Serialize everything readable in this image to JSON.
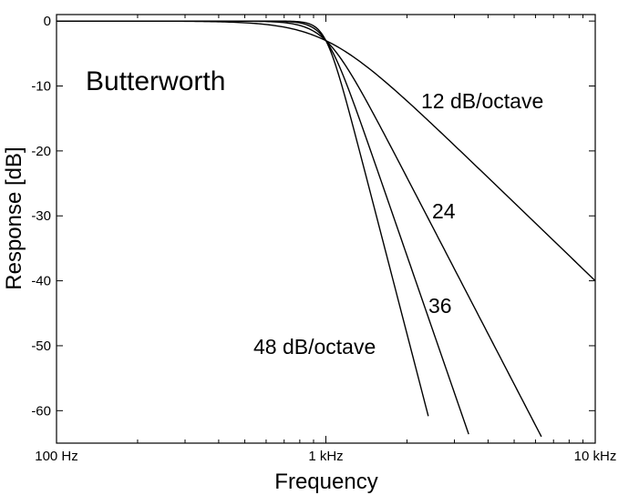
{
  "chart_data": {
    "type": "line",
    "title": "Butterworth",
    "xlabel": "Frequency",
    "ylabel": "Response [dB]",
    "x_scale": "log",
    "x_unit": "Hz",
    "xlim": [
      100,
      10000
    ],
    "ylim": [
      -65,
      1
    ],
    "x_ticks": [
      {
        "value": 100,
        "label": "100 Hz"
      },
      {
        "value": 1000,
        "label": "1 kHz"
      },
      {
        "value": 10000,
        "label": "10 kHz"
      }
    ],
    "y_ticks": [
      {
        "value": 0,
        "label": "0"
      },
      {
        "value": -10,
        "label": "-10"
      },
      {
        "value": -20,
        "label": "-20"
      },
      {
        "value": -30,
        "label": "-30"
      },
      {
        "value": -40,
        "label": "-40"
      },
      {
        "value": -50,
        "label": "-50"
      },
      {
        "value": -60,
        "label": "-60"
      }
    ],
    "grid": false,
    "cutoff_hz": 1000,
    "series": [
      {
        "order": 2,
        "x": [
          100,
          300,
          600,
          800,
          1000,
          1500,
          2000,
          3000,
          5000,
          10000
        ],
        "y": [
          0.0,
          -0.04,
          -0.5,
          -1.2,
          -3.0,
          -7.2,
          -12.3,
          -19.2,
          -28.0,
          -40.0
        ]
      },
      {
        "order": 4,
        "x": [
          100,
          300,
          600,
          800,
          1000,
          1500,
          2000,
          3000,
          5000,
          6310
        ],
        "y": [
          0.0,
          0.0,
          -0.1,
          -0.7,
          -3.0,
          -14.2,
          -24.1,
          -38.2,
          -55.9,
          -64.0
        ]
      },
      {
        "order": 6,
        "x": [
          100,
          300,
          600,
          800,
          1000,
          1500,
          2000,
          2500,
          3000,
          3390
        ],
        "y": [
          0.0,
          0.0,
          0.0,
          -0.3,
          -3.0,
          -21.2,
          -36.1,
          -47.8,
          -57.3,
          -63.6
        ]
      },
      {
        "order": 8,
        "x": [
          100,
          300,
          600,
          800,
          1000,
          1500,
          2000,
          2400
        ],
        "y": [
          0.0,
          0.0,
          0.0,
          -0.1,
          -3.0,
          -28.2,
          -48.2,
          -60.9
        ]
      }
    ],
    "annotations": [
      {
        "text": "12 dB/octave",
        "series": 2
      },
      {
        "text": "24",
        "series": 4
      },
      {
        "text": "36",
        "series": 6
      },
      {
        "text": "48 dB/octave",
        "series": 8
      }
    ]
  }
}
